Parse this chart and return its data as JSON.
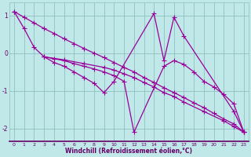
{
  "background_color": "#c0e8e8",
  "grid_color": "#90c0c0",
  "line_color": "#990099",
  "marker": "+",
  "markersize": 4,
  "linewidth": 0.9,
  "xlabel": "Windchill (Refroidissement éolien,°C)",
  "xlabel_fontsize": 5.5,
  "xlim": [
    -0.5,
    23.5
  ],
  "ylim": [
    -2.35,
    1.35
  ],
  "yticks": [
    -2,
    -1,
    0,
    1
  ],
  "xtick_fontsize": 4.5,
  "ytick_fontsize": 5.5,
  "series": [
    {
      "x": [
        0,
        1,
        2,
        3,
        4,
        5,
        6,
        7,
        8,
        9,
        10,
        14,
        15,
        16,
        17,
        22,
        23
      ],
      "y": [
        1.1,
        0.65,
        0.15,
        -0.1,
        -0.25,
        -0.35,
        -0.5,
        -0.65,
        -0.8,
        -1.05,
        -0.75,
        1.05,
        -0.2,
        0.95,
        0.45,
        -1.55,
        -2.1
      ]
    },
    {
      "x": [
        3,
        4,
        5,
        6,
        7,
        8,
        9,
        10,
        11,
        12,
        15,
        16,
        17,
        18,
        19,
        20,
        21,
        22,
        23
      ],
      "y": [
        -0.1,
        -0.15,
        -0.2,
        -0.28,
        -0.35,
        -0.42,
        -0.5,
        -0.6,
        -0.75,
        -2.1,
        -0.35,
        -0.2,
        -0.3,
        -0.5,
        -0.75,
        -0.9,
        -1.1,
        -1.35,
        -2.1
      ]
    },
    {
      "x": [
        3,
        5,
        7,
        9,
        10,
        11,
        12,
        13,
        14,
        15,
        16,
        17,
        19,
        21,
        22,
        23
      ],
      "y": [
        -0.1,
        -0.18,
        -0.28,
        -0.38,
        -0.45,
        -0.55,
        -0.65,
        -0.78,
        -0.9,
        -1.05,
        -1.15,
        -1.3,
        -1.55,
        -1.8,
        -1.95,
        -2.1
      ]
    },
    {
      "x": [
        0,
        1,
        2,
        3,
        4,
        5,
        6,
        7,
        8,
        9,
        10,
        11,
        12,
        13,
        14,
        15,
        16,
        17,
        18,
        19,
        20,
        21,
        22,
        23
      ],
      "y": [
        1.1,
        0.95,
        0.8,
        0.65,
        0.52,
        0.38,
        0.25,
        0.12,
        0.0,
        -0.12,
        -0.25,
        -0.38,
        -0.5,
        -0.65,
        -0.78,
        -0.92,
        -1.05,
        -1.18,
        -1.32,
        -1.45,
        -1.6,
        -1.75,
        -1.88,
        -2.1
      ]
    }
  ]
}
